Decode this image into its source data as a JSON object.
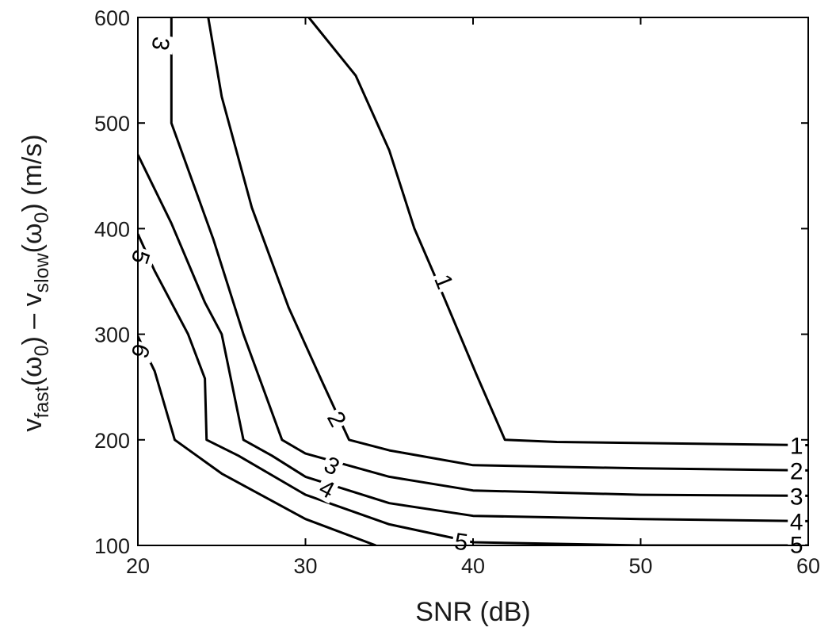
{
  "chart_data": {
    "type": "line",
    "xlabel": "SNR (dB)",
    "ylabel": {
      "parts": [
        "v",
        "fast",
        "(ω",
        "0",
        ") – v",
        "slow",
        "(ω",
        "0",
        ") (m/s)"
      ]
    },
    "xlim": [
      20,
      60
    ],
    "ylim": [
      100,
      600
    ],
    "x_ticks": [
      "20",
      "30",
      "40",
      "50",
      "60"
    ],
    "y_ticks": [
      "100",
      "200",
      "300",
      "400",
      "500",
      "600"
    ],
    "grid": false,
    "series": [
      {
        "name": "1",
        "points": [
          [
            30.2,
            600
          ],
          [
            33,
            545
          ],
          [
            35,
            474
          ],
          [
            36.5,
            400
          ],
          [
            38,
            345
          ],
          [
            40.2,
            262
          ],
          [
            41.9,
            200
          ],
          [
            45,
            198
          ],
          [
            60,
            195
          ]
        ]
      },
      {
        "name": "2",
        "points": [
          [
            24.2,
            600
          ],
          [
            25,
            525
          ],
          [
            26.8,
            420
          ],
          [
            29,
            325
          ],
          [
            31,
            255
          ],
          [
            32.6,
            200
          ],
          [
            35,
            190
          ],
          [
            40,
            176
          ],
          [
            50,
            173
          ],
          [
            60,
            171
          ]
        ]
      },
      {
        "name": "3",
        "points": [
          [
            22,
            600
          ],
          [
            22,
            500
          ],
          [
            24.5,
            390
          ],
          [
            26.3,
            300
          ],
          [
            28.6,
            200
          ],
          [
            30,
            187
          ],
          [
            35,
            165
          ],
          [
            40,
            152
          ],
          [
            50,
            148
          ],
          [
            60,
            147
          ]
        ]
      },
      {
        "name": "4",
        "points": [
          [
            20,
            470
          ],
          [
            22,
            405
          ],
          [
            24,
            330
          ],
          [
            25,
            300
          ],
          [
            26.3,
            200
          ],
          [
            28,
            185
          ],
          [
            30,
            165
          ],
          [
            35,
            140
          ],
          [
            40,
            128
          ],
          [
            50,
            125
          ],
          [
            60,
            123
          ]
        ]
      },
      {
        "name": "5",
        "points": [
          [
            20,
            395
          ],
          [
            21,
            360
          ],
          [
            23,
            300
          ],
          [
            24,
            258
          ],
          [
            24.1,
            200
          ],
          [
            26,
            185
          ],
          [
            30,
            148
          ],
          [
            35,
            120
          ],
          [
            40,
            103
          ],
          [
            50,
            100
          ],
          [
            60,
            100
          ]
        ]
      },
      {
        "name": "6",
        "points": [
          [
            20,
            298
          ],
          [
            21,
            265
          ],
          [
            22.2,
            200
          ],
          [
            25,
            168
          ],
          [
            30,
            125
          ],
          [
            34.2,
            100
          ]
        ]
      }
    ],
    "contour_labels": [
      {
        "text": "1",
        "x": 38.3,
        "y": 350,
        "angle": 68
      },
      {
        "text": "1",
        "x": 59.3,
        "y": 195,
        "angle": 0
      },
      {
        "text": "2",
        "x": 31.9,
        "y": 220,
        "angle": 62
      },
      {
        "text": "2",
        "x": 59.3,
        "y": 171,
        "angle": 0
      },
      {
        "text": "3",
        "x": 21.4,
        "y": 575,
        "angle": 100
      },
      {
        "text": "3",
        "x": 31.6,
        "y": 176,
        "angle": 28
      },
      {
        "text": "3",
        "x": 59.3,
        "y": 147,
        "angle": 0
      },
      {
        "text": "4",
        "x": 31.3,
        "y": 154,
        "angle": 28
      },
      {
        "text": "4",
        "x": 59.3,
        "y": 123,
        "angle": 0
      },
      {
        "text": "5",
        "x": 20.2,
        "y": 373,
        "angle": 108
      },
      {
        "text": "5",
        "x": 39.3,
        "y": 104,
        "angle": 8
      },
      {
        "text": "5",
        "x": 59.3,
        "y": 101,
        "angle": 0
      },
      {
        "text": "6",
        "x": 20.2,
        "y": 284,
        "angle": 108
      }
    ]
  }
}
